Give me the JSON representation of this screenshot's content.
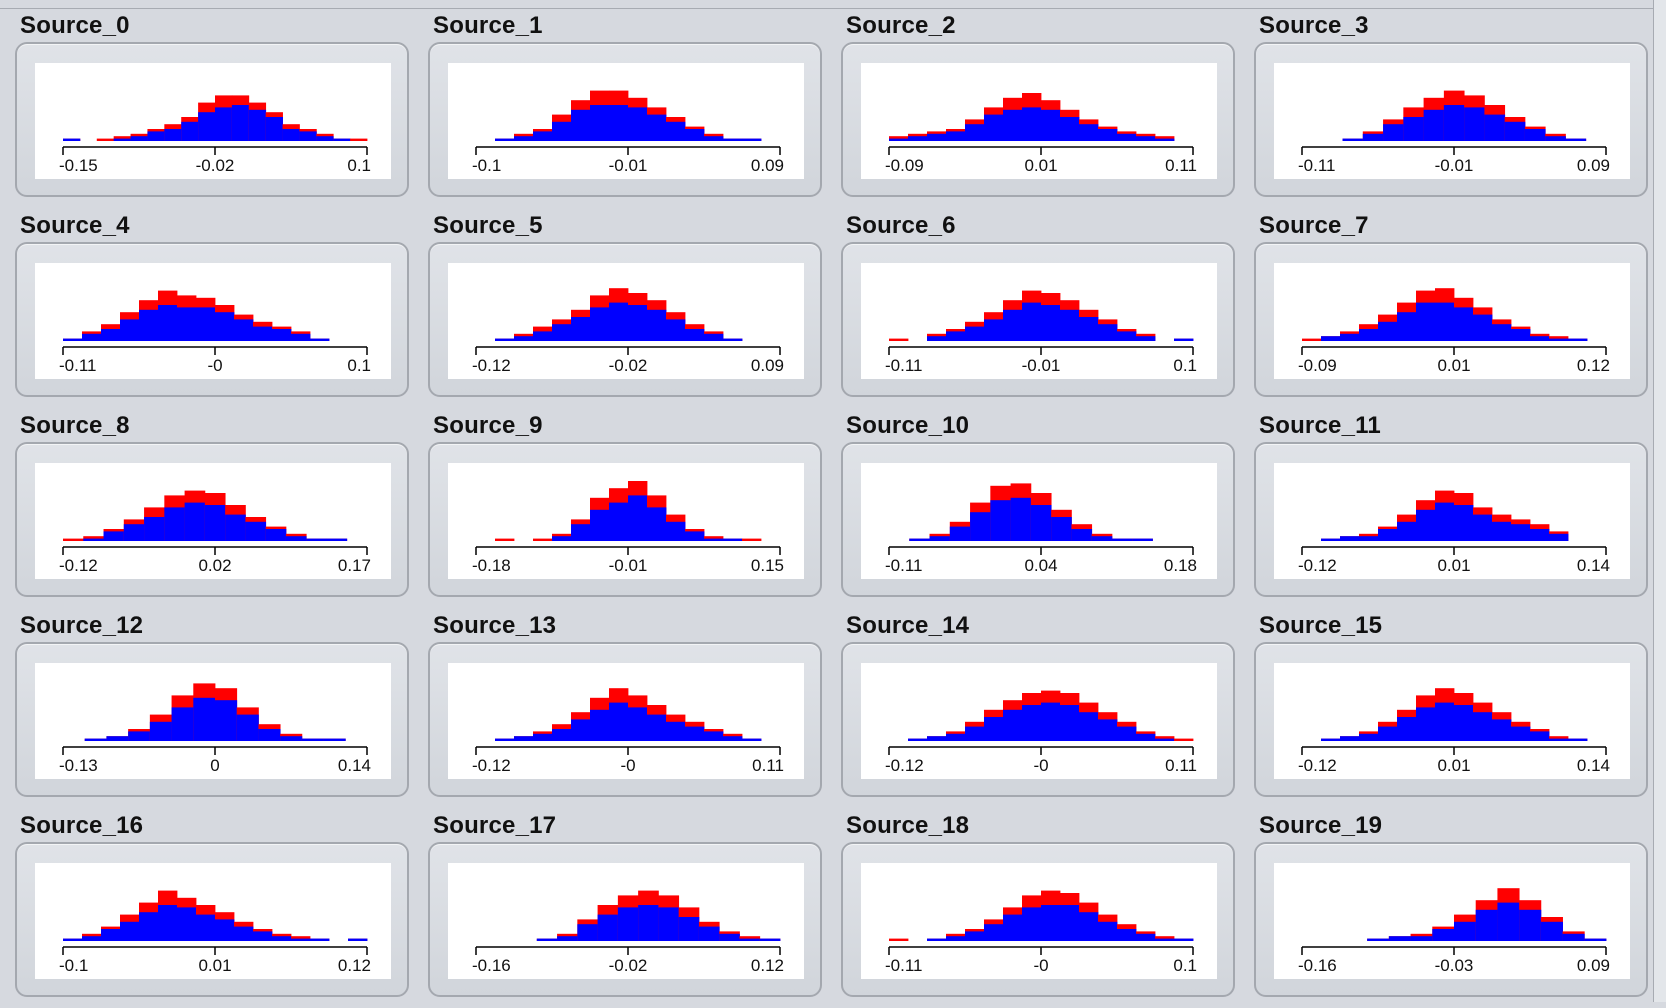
{
  "colors": {
    "overlay": "#ff0000",
    "base": "#0000ff",
    "axis": "#000000"
  },
  "panels": [
    {
      "title": "Source_0",
      "ticks": [
        "-0.15",
        "-0.02",
        "0.1"
      ],
      "chart_data": {
        "type": "bar",
        "x": [
          -0.15,
          -0.13,
          -0.12,
          -0.1,
          -0.09,
          -0.07,
          -0.06,
          -0.04,
          -0.03,
          -0.02,
          0.0,
          0.01,
          0.03,
          0.04,
          0.06,
          0.07,
          0.08,
          0.1
        ],
        "values": [
          1,
          0,
          1,
          2,
          3,
          5,
          7,
          10,
          16,
          19,
          19,
          16,
          12,
          7,
          5,
          3,
          1,
          1
        ],
        "values_base": [
          1,
          0,
          0,
          1,
          2,
          4,
          5,
          8,
          12,
          14,
          15,
          13,
          10,
          5,
          4,
          2,
          1,
          0
        ]
      }
    },
    {
      "title": "Source_1",
      "ticks": [
        "-0.1",
        "-0.01",
        "0.09"
      ],
      "chart_data": {
        "type": "bar",
        "x": [
          -0.1,
          -0.08,
          -0.07,
          -0.06,
          -0.04,
          -0.03,
          -0.02,
          -0.01,
          0.0,
          0.02,
          0.03,
          0.04,
          0.06,
          0.07,
          0.08,
          0.09
        ],
        "values": [
          0,
          1,
          3,
          5,
          11,
          17,
          21,
          21,
          18,
          14,
          10,
          6,
          3,
          1,
          1,
          0
        ],
        "values_base": [
          0,
          1,
          2,
          4,
          8,
          13,
          15,
          15,
          14,
          11,
          8,
          5,
          2,
          1,
          1,
          0
        ]
      }
    },
    {
      "title": "Source_2",
      "ticks": [
        "-0.09",
        "0.01",
        "0.11"
      ],
      "chart_data": {
        "type": "bar",
        "x": [
          -0.09,
          -0.08,
          -0.06,
          -0.05,
          -0.03,
          -0.02,
          -0.01,
          0.01,
          0.02,
          0.03,
          0.05,
          0.06,
          0.07,
          0.09,
          0.1,
          0.11
        ],
        "values": [
          2,
          3,
          4,
          5,
          9,
          14,
          18,
          20,
          17,
          13,
          9,
          6,
          4,
          3,
          2,
          0
        ],
        "values_base": [
          1,
          2,
          3,
          4,
          7,
          11,
          13,
          14,
          13,
          10,
          7,
          5,
          3,
          2,
          1,
          0
        ]
      }
    },
    {
      "title": "Source_3",
      "ticks": [
        "-0.11",
        "-0.01",
        "0.09"
      ],
      "chart_data": {
        "type": "bar",
        "x": [
          -0.11,
          -0.09,
          -0.07,
          -0.06,
          -0.05,
          -0.03,
          -0.02,
          -0.01,
          0.01,
          0.02,
          0.03,
          0.05,
          0.06,
          0.07,
          0.09
        ],
        "values": [
          0,
          0,
          1,
          4,
          9,
          14,
          18,
          21,
          19,
          15,
          10,
          6,
          3,
          1,
          0
        ],
        "values_base": [
          0,
          0,
          1,
          3,
          7,
          10,
          13,
          15,
          14,
          11,
          8,
          5,
          2,
          1,
          0
        ]
      }
    },
    {
      "title": "Source_4",
      "ticks": [
        "-0.11",
        "-0",
        "0.1"
      ],
      "chart_data": {
        "type": "bar",
        "x": [
          -0.11,
          -0.1,
          -0.08,
          -0.07,
          -0.06,
          -0.04,
          -0.03,
          -0.02,
          0.0,
          0.01,
          0.02,
          0.04,
          0.05,
          0.06,
          0.08,
          0.09
        ],
        "values": [
          1,
          4,
          7,
          12,
          17,
          21,
          19,
          18,
          15,
          11,
          8,
          6,
          4,
          1,
          0,
          0
        ],
        "values_base": [
          1,
          3,
          5,
          9,
          13,
          15,
          14,
          14,
          12,
          9,
          6,
          5,
          3,
          1,
          0,
          0
        ]
      }
    },
    {
      "title": "Source_5",
      "ticks": [
        "-0.12",
        "-0.02",
        "0.09"
      ],
      "chart_data": {
        "type": "bar",
        "x": [
          -0.12,
          -0.1,
          -0.09,
          -0.08,
          -0.06,
          -0.05,
          -0.03,
          -0.02,
          -0.01,
          0.01,
          0.02,
          0.03,
          0.05,
          0.06,
          0.08,
          0.09
        ],
        "values": [
          0,
          1,
          3,
          6,
          9,
          13,
          19,
          22,
          20,
          17,
          12,
          7,
          4,
          1,
          0,
          0
        ],
        "values_base": [
          0,
          1,
          2,
          4,
          7,
          10,
          14,
          16,
          15,
          13,
          9,
          5,
          3,
          1,
          0,
          0
        ]
      }
    },
    {
      "title": "Source_6",
      "ticks": [
        "-0.11",
        "-0.01",
        "0.1"
      ],
      "chart_data": {
        "type": "bar",
        "x": [
          -0.11,
          -0.09,
          -0.08,
          -0.06,
          -0.05,
          -0.03,
          -0.02,
          -0.01,
          0.01,
          0.02,
          0.04,
          0.05,
          0.06,
          0.08,
          0.09,
          0.1
        ],
        "values": [
          1,
          0,
          3,
          5,
          8,
          12,
          17,
          21,
          20,
          17,
          13,
          9,
          5,
          3,
          0,
          1
        ],
        "values_base": [
          0,
          0,
          2,
          4,
          6,
          9,
          13,
          16,
          15,
          13,
          10,
          7,
          4,
          2,
          0,
          1
        ]
      }
    },
    {
      "title": "Source_7",
      "ticks": [
        "-0.09",
        "0.01",
        "0.12"
      ],
      "chart_data": {
        "type": "bar",
        "x": [
          -0.09,
          -0.07,
          -0.06,
          -0.04,
          -0.03,
          -0.01,
          0.0,
          0.01,
          0.03,
          0.04,
          0.06,
          0.07,
          0.08,
          0.1,
          0.11,
          0.12
        ],
        "values": [
          1,
          2,
          4,
          7,
          11,
          16,
          21,
          22,
          18,
          14,
          9,
          6,
          3,
          2,
          1,
          0
        ],
        "values_base": [
          0,
          2,
          3,
          5,
          8,
          12,
          16,
          16,
          14,
          11,
          7,
          5,
          2,
          1,
          1,
          0
        ]
      }
    },
    {
      "title": "Source_8",
      "ticks": [
        "-0.12",
        "0.02",
        "0.17"
      ],
      "chart_data": {
        "type": "bar",
        "x": [
          -0.12,
          -0.1,
          -0.08,
          -0.06,
          -0.04,
          -0.02,
          0.0,
          0.02,
          0.03,
          0.05,
          0.07,
          0.09,
          0.11,
          0.13,
          0.15
        ],
        "values": [
          1,
          2,
          5,
          9,
          14,
          19,
          21,
          20,
          15,
          10,
          6,
          3,
          1,
          1,
          0
        ],
        "values_base": [
          0,
          1,
          4,
          7,
          10,
          14,
          16,
          15,
          11,
          8,
          5,
          2,
          1,
          1,
          0
        ]
      }
    },
    {
      "title": "Source_9",
      "ticks": [
        "-0.18",
        "-0.01",
        "0.15"
      ],
      "chart_data": {
        "type": "bar",
        "x": [
          -0.18,
          -0.14,
          -0.12,
          -0.1,
          -0.08,
          -0.06,
          -0.04,
          -0.02,
          -0.01,
          0.01,
          0.03,
          0.05,
          0.07,
          0.09,
          0.11,
          0.13
        ],
        "values": [
          0,
          1,
          0,
          1,
          3,
          9,
          18,
          22,
          25,
          19,
          11,
          5,
          2,
          1,
          1,
          0
        ],
        "values_base": [
          0,
          0,
          0,
          0,
          2,
          7,
          13,
          16,
          19,
          14,
          8,
          4,
          1,
          1,
          0,
          0
        ]
      }
    },
    {
      "title": "Source_10",
      "ticks": [
        "-0.11",
        "0.04",
        "0.18"
      ],
      "chart_data": {
        "type": "bar",
        "x": [
          -0.11,
          -0.09,
          -0.07,
          -0.05,
          -0.03,
          -0.01,
          0.01,
          0.03,
          0.04,
          0.06,
          0.08,
          0.1,
          0.12,
          0.14,
          0.16
        ],
        "values": [
          0,
          1,
          3,
          8,
          16,
          23,
          24,
          20,
          13,
          7,
          3,
          1,
          1,
          0,
          0
        ],
        "values_base": [
          0,
          1,
          2,
          6,
          12,
          17,
          18,
          15,
          10,
          5,
          2,
          1,
          1,
          0,
          0
        ]
      }
    },
    {
      "title": "Source_11",
      "ticks": [
        "-0.12",
        "0.01",
        "0.14"
      ],
      "chart_data": {
        "type": "bar",
        "x": [
          -0.12,
          -0.1,
          -0.08,
          -0.07,
          -0.05,
          -0.03,
          -0.02,
          0.0,
          0.01,
          0.03,
          0.05,
          0.06,
          0.08,
          0.1,
          0.11,
          0.13
        ],
        "values": [
          0,
          1,
          2,
          3,
          6,
          11,
          17,
          21,
          20,
          14,
          11,
          9,
          7,
          4,
          0,
          0
        ],
        "values_base": [
          0,
          1,
          2,
          2,
          5,
          8,
          13,
          16,
          15,
          11,
          8,
          7,
          5,
          3,
          0,
          0
        ]
      }
    },
    {
      "title": "Source_12",
      "ticks": [
        "-0.13",
        "0",
        "0.14"
      ],
      "chart_data": {
        "type": "bar",
        "x": [
          -0.13,
          -0.11,
          -0.09,
          -0.07,
          -0.05,
          -0.03,
          -0.01,
          0.0,
          0.02,
          0.04,
          0.06,
          0.08,
          0.1,
          0.12
        ],
        "values": [
          0,
          1,
          2,
          5,
          11,
          19,
          24,
          22,
          14,
          7,
          3,
          1,
          1,
          0
        ],
        "values_base": [
          0,
          1,
          2,
          4,
          8,
          14,
          18,
          17,
          11,
          5,
          2,
          1,
          1,
          0
        ]
      }
    },
    {
      "title": "Source_13",
      "ticks": [
        "-0.12",
        "-0",
        "0.11"
      ],
      "chart_data": {
        "type": "bar",
        "x": [
          -0.12,
          -0.1,
          -0.09,
          -0.07,
          -0.06,
          -0.04,
          -0.03,
          -0.01,
          0.0,
          0.01,
          0.03,
          0.04,
          0.06,
          0.07,
          0.09,
          0.1
        ],
        "values": [
          0,
          1,
          2,
          4,
          7,
          12,
          18,
          22,
          19,
          15,
          11,
          8,
          5,
          3,
          1,
          0
        ],
        "values_base": [
          0,
          1,
          2,
          3,
          5,
          9,
          13,
          16,
          14,
          11,
          8,
          6,
          4,
          2,
          1,
          0
        ]
      }
    },
    {
      "title": "Source_14",
      "ticks": [
        "-0.12",
        "-0",
        "0.11"
      ],
      "chart_data": {
        "type": "bar",
        "x": [
          -0.12,
          -0.1,
          -0.09,
          -0.07,
          -0.06,
          -0.04,
          -0.03,
          -0.01,
          0.0,
          0.01,
          0.03,
          0.04,
          0.06,
          0.07,
          0.09,
          0.1
        ],
        "values": [
          0,
          1,
          2,
          4,
          8,
          13,
          17,
          20,
          21,
          20,
          16,
          12,
          8,
          4,
          2,
          1
        ],
        "values_base": [
          0,
          1,
          2,
          3,
          6,
          10,
          13,
          15,
          16,
          15,
          12,
          9,
          6,
          3,
          1,
          0
        ]
      }
    },
    {
      "title": "Source_15",
      "ticks": [
        "-0.12",
        "0.01",
        "0.14"
      ],
      "chart_data": {
        "type": "bar",
        "x": [
          -0.12,
          -0.1,
          -0.08,
          -0.07,
          -0.05,
          -0.03,
          -0.02,
          0.0,
          0.01,
          0.03,
          0.05,
          0.06,
          0.08,
          0.1,
          0.11,
          0.13
        ],
        "values": [
          0,
          1,
          2,
          4,
          8,
          13,
          19,
          22,
          20,
          16,
          12,
          8,
          5,
          2,
          1,
          0
        ],
        "values_base": [
          0,
          1,
          2,
          3,
          6,
          10,
          14,
          16,
          15,
          12,
          9,
          6,
          4,
          1,
          1,
          0
        ]
      }
    },
    {
      "title": "Source_16",
      "ticks": [
        "-0.1",
        "0.01",
        "0.12"
      ],
      "chart_data": {
        "type": "bar",
        "x": [
          -0.1,
          -0.08,
          -0.07,
          -0.05,
          -0.04,
          -0.02,
          -0.01,
          0.0,
          0.02,
          0.03,
          0.05,
          0.06,
          0.08,
          0.09,
          0.1,
          0.12
        ],
        "values": [
          1,
          3,
          6,
          11,
          16,
          21,
          18,
          15,
          12,
          8,
          5,
          3,
          2,
          1,
          0,
          1
        ],
        "values_base": [
          1,
          2,
          5,
          8,
          12,
          15,
          14,
          11,
          9,
          6,
          4,
          2,
          1,
          1,
          0,
          1
        ]
      }
    },
    {
      "title": "Source_17",
      "ticks": [
        "-0.16",
        "-0.02",
        "0.12"
      ],
      "chart_data": {
        "type": "bar",
        "x": [
          -0.16,
          -0.14,
          -0.12,
          -0.1,
          -0.08,
          -0.06,
          -0.04,
          -0.02,
          -0.01,
          0.01,
          0.03,
          0.05,
          0.07,
          0.09,
          0.11
        ],
        "values": [
          0,
          0,
          0,
          1,
          3,
          9,
          15,
          19,
          21,
          19,
          14,
          8,
          4,
          2,
          1
        ],
        "values_base": [
          0,
          0,
          0,
          1,
          2,
          7,
          11,
          14,
          15,
          14,
          10,
          6,
          3,
          1,
          1
        ]
      }
    },
    {
      "title": "Source_18",
      "ticks": [
        "-0.11",
        "-0",
        "0.1"
      ],
      "chart_data": {
        "type": "bar",
        "x": [
          -0.11,
          -0.09,
          -0.08,
          -0.07,
          -0.05,
          -0.04,
          -0.03,
          -0.01,
          0.0,
          0.01,
          0.03,
          0.04,
          0.05,
          0.07,
          0.08,
          0.09
        ],
        "values": [
          1,
          0,
          1,
          3,
          5,
          9,
          14,
          19,
          21,
          20,
          16,
          11,
          7,
          4,
          2,
          1
        ],
        "values_base": [
          0,
          0,
          1,
          2,
          4,
          7,
          11,
          14,
          15,
          15,
          12,
          8,
          5,
          3,
          1,
          1
        ]
      }
    },
    {
      "title": "Source_19",
      "ticks": [
        "-0.16",
        "-0.03",
        "0.09"
      ],
      "chart_data": {
        "type": "bar",
        "x": [
          -0.16,
          -0.14,
          -0.12,
          -0.1,
          -0.08,
          -0.06,
          -0.04,
          -0.03,
          -0.01,
          0.01,
          0.03,
          0.05,
          0.07,
          0.09
        ],
        "values": [
          0,
          0,
          0,
          1,
          2,
          3,
          6,
          11,
          17,
          22,
          17,
          10,
          4,
          1
        ],
        "values_base": [
          0,
          0,
          0,
          1,
          2,
          2,
          5,
          8,
          13,
          16,
          13,
          8,
          3,
          1
        ]
      }
    }
  ]
}
